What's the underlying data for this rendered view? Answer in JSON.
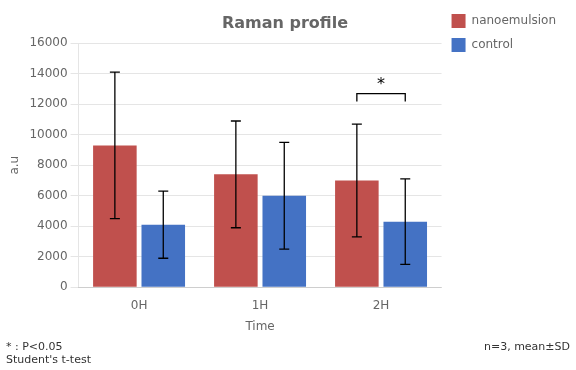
{
  "chart_data": {
    "type": "bar",
    "title": "Raman profile",
    "xlabel": "Time",
    "ylabel": "a.u",
    "categories": [
      "0H",
      "1H",
      "2H"
    ],
    "series": [
      {
        "name": "nanoemulsion",
        "color": "#c0504d",
        "values": [
          9300,
          7400,
          7000
        ],
        "errors": [
          4800,
          3500,
          3700
        ]
      },
      {
        "name": "control",
        "color": "#4472c4",
        "values": [
          4100,
          6000,
          4300
        ],
        "errors": [
          2200,
          3500,
          2800
        ]
      }
    ],
    "ylim": [
      0,
      16000
    ],
    "yticks": [
      0,
      2000,
      4000,
      6000,
      8000,
      10000,
      12000,
      14000,
      16000
    ],
    "grid": true,
    "legend": "right",
    "annotations": [
      {
        "text": "*",
        "category": "2H",
        "y": 12700
      }
    ],
    "footnotes": [
      "* : P<0.05\nStudent's t-test",
      "n=3, mean±SD"
    ]
  }
}
